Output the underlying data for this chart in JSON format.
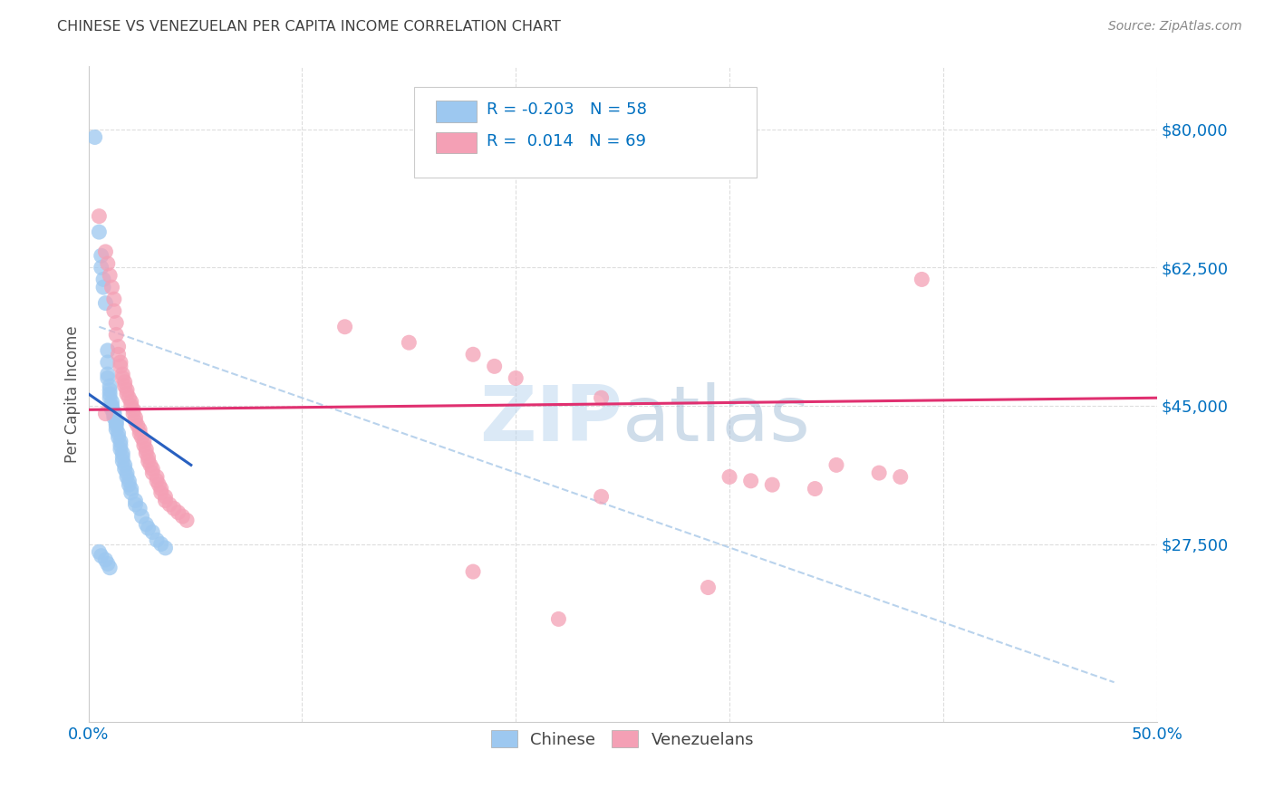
{
  "title": "CHINESE VS VENEZUELAN PER CAPITA INCOME CORRELATION CHART",
  "source": "Source: ZipAtlas.com",
  "ylabel": "Per Capita Income",
  "watermark": "ZIPatlas",
  "ytick_labels": [
    "$80,000",
    "$62,500",
    "$45,000",
    "$27,500"
  ],
  "ytick_values": [
    80000,
    62500,
    45000,
    27500
  ],
  "ymin": 5000,
  "ymax": 88000,
  "xmin": 0.0,
  "xmax": 0.5,
  "chinese_color": "#9DC8F0",
  "venezuelan_color": "#F4A0B5",
  "chinese_line_color": "#2860C0",
  "venezuelan_line_color": "#E03070",
  "dashed_line_color": "#A8C8E8",
  "title_color": "#404040",
  "source_color": "#888888",
  "axis_label_color": "#0070C0",
  "ytick_color": "#0070C0",
  "xtick_color": "#0070C0",
  "background_color": "#FFFFFF",
  "grid_color": "#DDDDDD",
  "chinese_scatter": [
    [
      0.003,
      79000
    ],
    [
      0.005,
      67000
    ],
    [
      0.006,
      64000
    ],
    [
      0.006,
      62500
    ],
    [
      0.007,
      61000
    ],
    [
      0.007,
      60000
    ],
    [
      0.008,
      58000
    ],
    [
      0.009,
      52000
    ],
    [
      0.009,
      50500
    ],
    [
      0.009,
      49000
    ],
    [
      0.009,
      48500
    ],
    [
      0.01,
      47500
    ],
    [
      0.01,
      47000
    ],
    [
      0.01,
      46500
    ],
    [
      0.01,
      46000
    ],
    [
      0.011,
      45500
    ],
    [
      0.011,
      45000
    ],
    [
      0.011,
      44800
    ],
    [
      0.011,
      44500
    ],
    [
      0.012,
      44200
    ],
    [
      0.012,
      44000
    ],
    [
      0.012,
      43800
    ],
    [
      0.012,
      43500
    ],
    [
      0.013,
      43000
    ],
    [
      0.013,
      42800
    ],
    [
      0.013,
      42500
    ],
    [
      0.013,
      42000
    ],
    [
      0.014,
      41500
    ],
    [
      0.014,
      41000
    ],
    [
      0.015,
      40500
    ],
    [
      0.015,
      40000
    ],
    [
      0.015,
      39500
    ],
    [
      0.016,
      39000
    ],
    [
      0.016,
      38500
    ],
    [
      0.016,
      38000
    ],
    [
      0.017,
      37500
    ],
    [
      0.017,
      37000
    ],
    [
      0.018,
      36500
    ],
    [
      0.018,
      36000
    ],
    [
      0.019,
      35500
    ],
    [
      0.019,
      35000
    ],
    [
      0.02,
      34500
    ],
    [
      0.02,
      34000
    ],
    [
      0.022,
      33000
    ],
    [
      0.022,
      32500
    ],
    [
      0.024,
      32000
    ],
    [
      0.025,
      31000
    ],
    [
      0.027,
      30000
    ],
    [
      0.028,
      29500
    ],
    [
      0.03,
      29000
    ],
    [
      0.032,
      28000
    ],
    [
      0.034,
      27500
    ],
    [
      0.036,
      27000
    ],
    [
      0.005,
      26500
    ],
    [
      0.006,
      26000
    ],
    [
      0.008,
      25500
    ],
    [
      0.009,
      25000
    ],
    [
      0.01,
      24500
    ]
  ],
  "venezuelan_scatter": [
    [
      0.005,
      69000
    ],
    [
      0.008,
      64500
    ],
    [
      0.009,
      63000
    ],
    [
      0.01,
      61500
    ],
    [
      0.011,
      60000
    ],
    [
      0.012,
      58500
    ],
    [
      0.012,
      57000
    ],
    [
      0.013,
      55500
    ],
    [
      0.013,
      54000
    ],
    [
      0.014,
      52500
    ],
    [
      0.014,
      51500
    ],
    [
      0.015,
      50500
    ],
    [
      0.015,
      50000
    ],
    [
      0.016,
      49000
    ],
    [
      0.016,
      48500
    ],
    [
      0.017,
      48000
    ],
    [
      0.017,
      47500
    ],
    [
      0.018,
      47000
    ],
    [
      0.018,
      46500
    ],
    [
      0.019,
      46000
    ],
    [
      0.02,
      45500
    ],
    [
      0.02,
      45000
    ],
    [
      0.021,
      44500
    ],
    [
      0.021,
      44000
    ],
    [
      0.022,
      43500
    ],
    [
      0.022,
      43000
    ],
    [
      0.023,
      42500
    ],
    [
      0.024,
      42000
    ],
    [
      0.024,
      41500
    ],
    [
      0.025,
      41000
    ],
    [
      0.026,
      40500
    ],
    [
      0.026,
      40000
    ],
    [
      0.027,
      39500
    ],
    [
      0.027,
      39000
    ],
    [
      0.028,
      38500
    ],
    [
      0.028,
      38000
    ],
    [
      0.029,
      37500
    ],
    [
      0.03,
      37000
    ],
    [
      0.03,
      36500
    ],
    [
      0.032,
      36000
    ],
    [
      0.032,
      35500
    ],
    [
      0.033,
      35000
    ],
    [
      0.034,
      34500
    ],
    [
      0.034,
      34000
    ],
    [
      0.036,
      33500
    ],
    [
      0.036,
      33000
    ],
    [
      0.038,
      32500
    ],
    [
      0.04,
      32000
    ],
    [
      0.042,
      31500
    ],
    [
      0.044,
      31000
    ],
    [
      0.046,
      30500
    ],
    [
      0.008,
      44000
    ],
    [
      0.12,
      55000
    ],
    [
      0.15,
      53000
    ],
    [
      0.18,
      51500
    ],
    [
      0.19,
      50000
    ],
    [
      0.2,
      48500
    ],
    [
      0.24,
      46000
    ],
    [
      0.3,
      36000
    ],
    [
      0.31,
      35500
    ],
    [
      0.32,
      35000
    ],
    [
      0.34,
      34500
    ],
    [
      0.35,
      37500
    ],
    [
      0.37,
      36500
    ],
    [
      0.38,
      36000
    ],
    [
      0.39,
      61000
    ],
    [
      0.24,
      33500
    ],
    [
      0.29,
      22000
    ],
    [
      0.18,
      24000
    ],
    [
      0.22,
      18000
    ]
  ],
  "chinese_trend_x": [
    0.0,
    0.048
  ],
  "chinese_trend_y": [
    46500,
    37500
  ],
  "venezuelan_trend_x": [
    0.0,
    0.5
  ],
  "venezuelan_trend_y": [
    44500,
    46000
  ],
  "dashed_trend_x": [
    0.005,
    0.48
  ],
  "dashed_trend_y": [
    55000,
    10000
  ]
}
